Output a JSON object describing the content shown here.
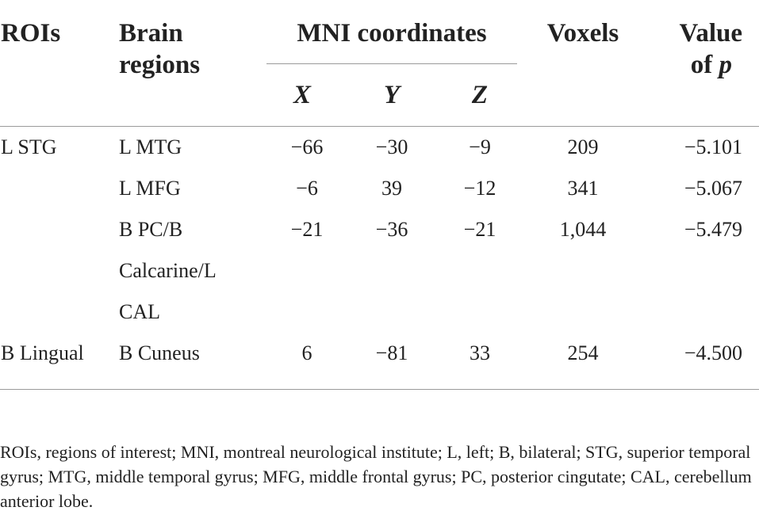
{
  "table": {
    "headers": {
      "rois": "ROIs",
      "brain_regions_line1": "Brain",
      "brain_regions_line2": "regions",
      "mni": "MNI coordinates",
      "x": "X",
      "y": "Y",
      "z": "Z",
      "voxels": "Voxels",
      "pvalue_line1": "Value",
      "pvalue_line2": "of p"
    },
    "rows": [
      {
        "roi": "L STG",
        "region": "L MTG",
        "x": "−66",
        "y": "−30",
        "z": "−9",
        "voxels": "209",
        "p": "−5.101"
      },
      {
        "roi": "",
        "region": "L MFG",
        "x": "−6",
        "y": "39",
        "z": "−12",
        "voxels": "341",
        "p": "−5.067"
      },
      {
        "roi": "",
        "region": "B PC/B",
        "region_line2": "Calcarine/L",
        "region_line3": "CAL",
        "x": "−21",
        "y": "−36",
        "z": "−21",
        "voxels": "1,044",
        "p": "−5.479"
      },
      {
        "roi": "B Lingual",
        "region": "B Cuneus",
        "x": "6",
        "y": "−81",
        "z": "33",
        "voxels": "254",
        "p": "−4.500"
      }
    ]
  },
  "footnote": "ROIs, regions of interest; MNI, montreal neurological institute; L, left; B, bilateral; STG, superior temporal gyrus; MTG, middle temporal gyrus; MFG, middle frontal gyrus; PC, posterior cingutate; CAL, cerebellum anterior lobe."
}
